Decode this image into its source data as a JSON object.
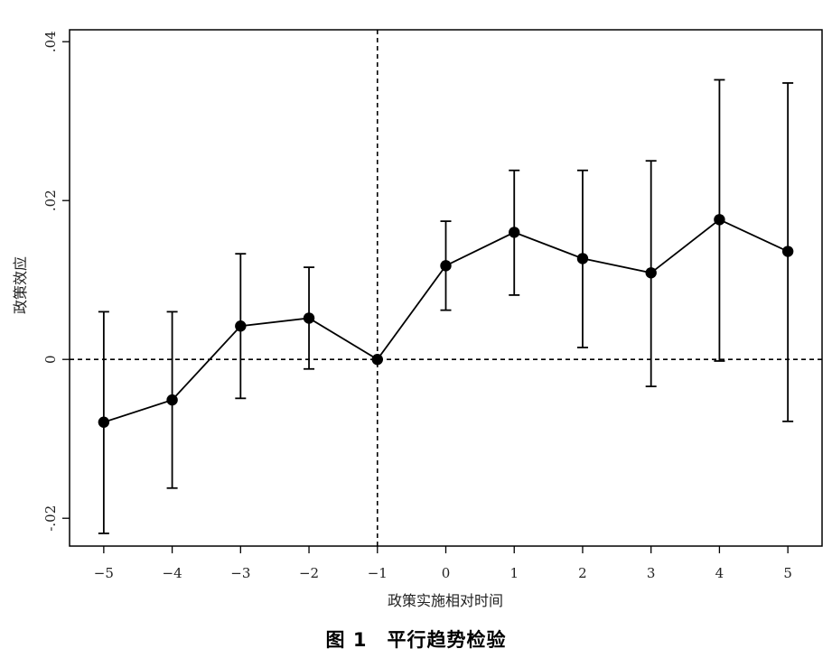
{
  "caption": "图 1　平行趋势检验",
  "chart_data": {
    "type": "line",
    "xlabel": "政策实施相对时间",
    "ylabel": "政策效应",
    "x": [
      -5,
      -4,
      -3,
      -2,
      -1,
      0,
      1,
      2,
      3,
      4,
      5
    ],
    "x_tick_labels": [
      "−5",
      "−4",
      "−3",
      "−2",
      "−1",
      "0",
      "1",
      "2",
      "3",
      "4",
      "5"
    ],
    "y_ticks": [
      -0.02,
      0,
      0.02,
      0.04
    ],
    "y_tick_labels": [
      "-.02",
      "0",
      ".02",
      ".04"
    ],
    "xlim": [
      -5.5,
      5.5
    ],
    "ylim": [
      -0.0235,
      0.0415
    ],
    "series": [
      {
        "values": [
          -0.0079,
          -0.0051,
          0.0042,
          0.0052,
          0.0,
          0.0118,
          0.016,
          0.0127,
          0.0109,
          0.0176,
          0.0136
        ],
        "ci_lower": [
          -0.0219,
          -0.0162,
          -0.0049,
          -0.0012,
          0.0,
          0.0062,
          0.0081,
          0.0015,
          -0.0034,
          -0.0002,
          -0.0078
        ],
        "ci_upper": [
          0.006,
          0.006,
          0.0133,
          0.0116,
          0.0,
          0.0174,
          0.0238,
          0.0238,
          0.025,
          0.0352,
          0.0348
        ]
      }
    ],
    "reference_lines": {
      "x": -1,
      "y": 0,
      "style": "dashed"
    },
    "grid": false,
    "legend": "none",
    "colors": {
      "line": "#000000",
      "marker": "#000000"
    }
  }
}
